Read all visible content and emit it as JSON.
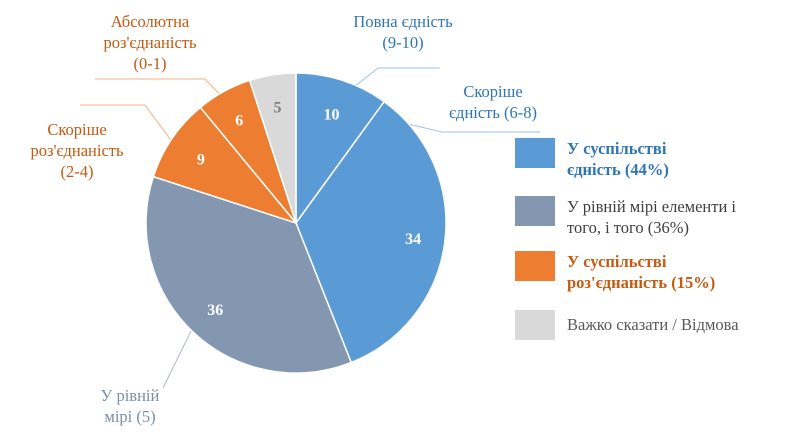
{
  "chart_data": {
    "type": "pie",
    "colors": {
      "blue": "#5b9bd5",
      "gray": "#8497b0",
      "orange": "#ed7d31",
      "light": "#d9d9d9"
    },
    "slices": [
      {
        "label": "Повна єдність (9-10)",
        "value": 10,
        "color": "#5b9bd5",
        "label_color": "#ffffff"
      },
      {
        "label": "Скоріше єдність (6-8)",
        "value": 34,
        "color": "#5b9bd5",
        "label_color": "#ffffff"
      },
      {
        "label": "У рівній мірі (5)",
        "value": 36,
        "color": "#8497b0",
        "label_color": "#ffffff"
      },
      {
        "label": "Скоріше роз'єднаність (2-4)",
        "value": 9,
        "color": "#ed7d31",
        "label_color": "#ffffff"
      },
      {
        "label": "Абсолютна роз'єднаність (0-1)",
        "value": 6,
        "color": "#ed7d31",
        "label_color": "#ffffff"
      },
      {
        "label": "",
        "value": 5,
        "color": "#d9d9d9",
        "label_color": "#7f7f7f"
      }
    ],
    "callouts": [
      {
        "lines": [
          "Повна єдність",
          "(9-10)"
        ],
        "color": "#2e75b6"
      },
      {
        "lines": [
          "Скоріше",
          "єдність (6-8)"
        ],
        "color": "#2e75b6"
      },
      {
        "lines": [
          "У рівній",
          "мірі (5)"
        ],
        "color": "#7a8ea8"
      },
      {
        "lines": [
          "Скоріше",
          "роз'єднаність",
          "(2-4)"
        ],
        "color": "#c55a11"
      },
      {
        "lines": [
          "Абсолютна",
          "роз'єднаність",
          "(0-1)"
        ],
        "color": "#c55a11"
      }
    ],
    "legend": [
      {
        "lines": [
          "У суспільстві",
          "єдність (44%)"
        ],
        "color": "#5b9bd5",
        "text_color": "#2e75b6",
        "bold": true
      },
      {
        "lines": [
          "У рівній мірі елементи і",
          "того, і того (36%)"
        ],
        "color": "#8497b0",
        "text_color": "#404040",
        "bold": false
      },
      {
        "lines": [
          "У суспільстві",
          "роз'єднаність (15%)"
        ],
        "color": "#ed7d31",
        "text_color": "#c55a11",
        "bold": true
      },
      {
        "lines": [
          "Важко сказати / Відмова"
        ],
        "color": "#d9d9d9",
        "text_color": "#595959",
        "bold": false
      }
    ]
  }
}
